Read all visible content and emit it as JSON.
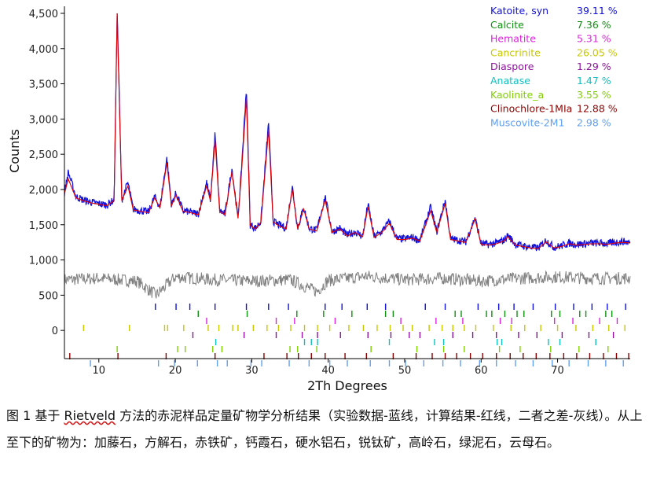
{
  "chart_data": {
    "type": "line",
    "xlabel": "2Th Degrees",
    "ylabel": "Counts",
    "xlim": [
      5.5,
      79.5
    ],
    "ylim": [
      -400,
      4600
    ],
    "x_ticks": [
      10,
      20,
      30,
      40,
      50,
      60,
      70
    ],
    "y_ticks": [
      0,
      500,
      1000,
      1500,
      2000,
      2500,
      3000,
      3500,
      4000,
      4500
    ],
    "y_tick_labels": [
      "0",
      "500",
      "1,000",
      "1,500",
      "2,000",
      "2,500",
      "3,000",
      "3,500",
      "4,000",
      "4,500"
    ],
    "grid": false,
    "legend_position": "top-right",
    "series": [
      {
        "role": "observed",
        "color": "#1010e0",
        "x": [
          5.5,
          6,
          7,
          8,
          9,
          10,
          11,
          12,
          12.4,
          13,
          13.8,
          14.5,
          15.5,
          16.5,
          17.3,
          18,
          18.9,
          19.5,
          20.1,
          21,
          22,
          23,
          24.1,
          24.6,
          25.2,
          25.8,
          26.5,
          27.4,
          28.2,
          28.6,
          29.3,
          29.8,
          30.5,
          31.2,
          32.2,
          32.8,
          33.5,
          34.5,
          35.3,
          36,
          36.8,
          37.5,
          38.5,
          39.6,
          40.5,
          41.5,
          42.5,
          43.5,
          44.5,
          45.2,
          46,
          47,
          48,
          49,
          50,
          51,
          52,
          53.4,
          54.2,
          55.3,
          56,
          57,
          58,
          59.2,
          60,
          61,
          62,
          63,
          63.5,
          64.5,
          65.5,
          66.5,
          67.5,
          68.5,
          69.5,
          70.5,
          71.5,
          72.5,
          73.5,
          74.5,
          75.5,
          76.5,
          77.5,
          78.5,
          79.5
        ],
        "y": [
          1950,
          2250,
          1900,
          1850,
          1820,
          1800,
          1780,
          1850,
          4550,
          1850,
          2100,
          1720,
          1700,
          1680,
          1900,
          1750,
          2450,
          1780,
          1950,
          1700,
          1680,
          1650,
          2100,
          1850,
          2800,
          1700,
          1650,
          2300,
          1600,
          2200,
          3450,
          1500,
          1450,
          1550,
          2950,
          1550,
          1500,
          1450,
          2050,
          1450,
          1750,
          1450,
          1420,
          1900,
          1400,
          1450,
          1350,
          1400,
          1340,
          1800,
          1330,
          1400,
          1550,
          1300,
          1300,
          1320,
          1280,
          1750,
          1400,
          1850,
          1300,
          1280,
          1260,
          1600,
          1230,
          1220,
          1240,
          1280,
          1350,
          1220,
          1200,
          1180,
          1170,
          1280,
          1180,
          1200,
          1240,
          1220,
          1230,
          1240,
          1240,
          1230,
          1250,
          1260,
          1250
        ]
      },
      {
        "role": "calculated",
        "color": "#e00000",
        "x": [
          5.5,
          6,
          7,
          8,
          9,
          10,
          11,
          12,
          12.4,
          13,
          13.8,
          14.5,
          15.5,
          16.5,
          17.3,
          18,
          18.9,
          19.5,
          20.1,
          21,
          22,
          23,
          24.1,
          24.6,
          25.2,
          25.8,
          26.5,
          27.4,
          28.2,
          28.6,
          29.3,
          29.8,
          30.5,
          31.2,
          32.2,
          32.8,
          33.5,
          34.5,
          35.3,
          36,
          36.8,
          37.5,
          38.5,
          39.6,
          40.5,
          41.5,
          42.5,
          43.5,
          44.5,
          45.2,
          46,
          47,
          48,
          49,
          50,
          51,
          52,
          53.4,
          54.2,
          55.3,
          56,
          57,
          58,
          59.2,
          60,
          61,
          62,
          63,
          63.5,
          64.5,
          65.5,
          66.5,
          67.5,
          68.5,
          69.5,
          70.5,
          71.5,
          72.5,
          73.5,
          74.5,
          75.5,
          76.5,
          77.5,
          78.5,
          79.5
        ],
        "y": [
          1940,
          2150,
          1880,
          1840,
          1810,
          1790,
          1770,
          1840,
          4500,
          1840,
          2050,
          1710,
          1690,
          1670,
          1880,
          1740,
          2380,
          1770,
          1920,
          1690,
          1670,
          1640,
          2050,
          1840,
          2700,
          1690,
          1640,
          2250,
          1590,
          2150,
          3300,
          1490,
          1440,
          1540,
          2850,
          1540,
          1490,
          1440,
          2000,
          1440,
          1720,
          1440,
          1410,
          1850,
          1390,
          1440,
          1340,
          1390,
          1330,
          1750,
          1320,
          1390,
          1520,
          1290,
          1290,
          1310,
          1270,
          1700,
          1390,
          1800,
          1290,
          1270,
          1250,
          1580,
          1220,
          1210,
          1230,
          1270,
          1330,
          1210,
          1190,
          1170,
          1160,
          1260,
          1170,
          1190,
          1230,
          1210,
          1220,
          1230,
          1230,
          1220,
          1240,
          1250,
          1240
        ]
      },
      {
        "role": "difference",
        "color": "#808080",
        "x": [
          5.5,
          10,
          15,
          17.5,
          20,
          25,
          30,
          35,
          38.5,
          40,
          45,
          50,
          55,
          60,
          65,
          70,
          75,
          79.5
        ],
        "y": [
          720,
          740,
          700,
          500,
          760,
          720,
          700,
          720,
          550,
          710,
          770,
          720,
          740,
          700,
          740,
          760,
          740,
          740
        ]
      }
    ],
    "phases": [
      {
        "name": "Katoite, syn",
        "percent": "39.11 %",
        "color": "#1010e0",
        "positions": [
          17.4,
          20.1,
          21.9,
          25.2,
          29.3,
          32.2,
          34.8,
          39.6,
          41.8,
          45.1,
          47.5,
          52.7,
          55.3,
          59.6,
          62.3,
          64.3,
          66.8,
          69.7,
          72.1,
          74.5,
          76.5,
          78.9
        ]
      },
      {
        "name": "Calcite",
        "percent": "7.36 %",
        "color": "#109010",
        "positions": [
          23.0,
          29.4,
          35.9,
          39.4,
          43.1,
          47.5,
          48.5,
          56.6,
          57.4,
          60.7,
          61.4,
          63.1,
          64.7,
          65.6,
          69.2,
          70.3,
          72.9,
          73.7,
          76.3,
          77.1
        ]
      },
      {
        "name": "Hematite",
        "percent": "5.31 %",
        "color": "#e020e0",
        "positions": [
          24.1,
          33.2,
          35.6,
          40.9,
          49.5,
          54.1,
          57.6,
          62.5,
          64.0,
          69.6,
          72.0,
          75.5,
          77.8
        ]
      },
      {
        "name": "Cancrinite",
        "percent": "26.05 %",
        "color": "#c8c800",
        "positions": [
          8.0,
          14.0,
          18.6,
          19.0,
          21.1,
          24.3,
          25.7,
          27.5,
          28.2,
          30.2,
          32.0,
          33.5,
          35.1,
          36.9,
          38.6,
          40.2,
          42.7,
          44.6,
          46.4,
          48.1,
          49.8,
          51.0,
          53.2,
          54.9,
          56.3,
          57.8,
          59.3,
          61.6,
          63.9,
          65.7,
          67.8,
          70.0,
          72.4,
          74.6,
          76.7,
          78.8
        ]
      },
      {
        "name": "Diaspore",
        "percent": "1.29 %",
        "color": "#9010a0",
        "positions": [
          22.3,
          29.0,
          33.2,
          36.6,
          38.6,
          41.6,
          45.2,
          48.2,
          50.6,
          52.0,
          56.3,
          58.9,
          62.0,
          64.9,
          67.3,
          70.6,
          74.1,
          77.3
        ]
      },
      {
        "name": "Anatase",
        "percent": "1.47 %",
        "color": "#10c0c0",
        "positions": [
          25.3,
          36.9,
          37.8,
          38.6,
          48.0,
          53.9,
          55.1,
          62.1,
          62.7,
          68.8,
          70.3,
          75.0
        ]
      },
      {
        "name": "Kaolinite_a",
        "percent": "3.55 %",
        "color": "#80d000",
        "positions": [
          12.4,
          20.3,
          21.3,
          24.9,
          26.1,
          35.0,
          36.0,
          38.5,
          45.6,
          51.6,
          55.1,
          57.8,
          62.4,
          65.1,
          69.1,
          72.8,
          76.6
        ]
      },
      {
        "name": "Clinochlore-1MIa",
        "percent": "12.88 %",
        "color": "#900000",
        "positions": [
          6.2,
          12.5,
          18.8,
          25.2,
          31.6,
          34.6,
          36.1,
          37.8,
          39.6,
          42.2,
          45.0,
          48.5,
          51.5,
          53.6,
          55.3,
          56.8,
          58.6,
          60.2,
          62.0,
          63.8,
          65.5,
          67.2,
          69.0,
          70.8,
          72.5,
          74.2,
          76.0,
          77.7,
          79.3
        ]
      },
      {
        "name": "Muscovite-2M1",
        "percent": "2.98 %",
        "color": "#60a0f0",
        "positions": [
          8.9,
          17.8,
          19.9,
          22.9,
          25.5,
          26.8,
          29.9,
          31.3,
          34.9,
          37.5,
          40.2,
          42.5,
          45.5,
          48.0,
          50.1,
          52.5,
          55.0,
          57.3,
          59.8,
          62.0,
          64.5,
          66.8,
          69.3,
          71.5,
          74.0,
          76.3,
          78.6
        ]
      }
    ]
  },
  "caption": {
    "label": "图 1 基于 ",
    "method": "Rietveld",
    "text": " 方法的赤泥样品定量矿物学分析结果（实验数据-蓝线，计算结果-红线，二者之差-灰线）。从上至下的矿物为：加藤石，方解石，赤铁矿，钙霞石，硬水铝石，锐钛矿，高岭石，绿泥石，云母石。"
  }
}
